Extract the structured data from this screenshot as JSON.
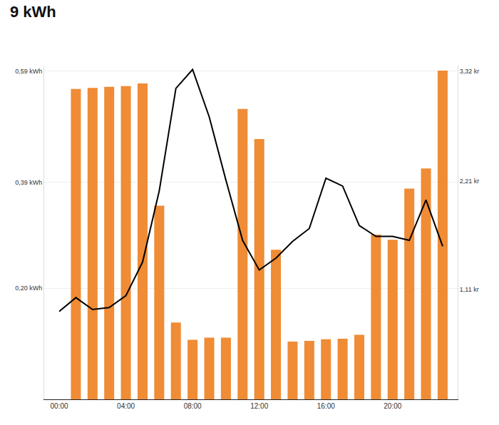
{
  "chart_data": {
    "type": "bar",
    "title": "9 kWh",
    "x": [
      0,
      1,
      2,
      3,
      4,
      5,
      6,
      7,
      8,
      9,
      10,
      11,
      12,
      13,
      14,
      15,
      16,
      17,
      18,
      19,
      20,
      21,
      22,
      23
    ],
    "series": [
      {
        "type": "bar",
        "color": "#ef8c35",
        "values": [
          null,
          0.558,
          0.56,
          0.562,
          0.563,
          0.568,
          0.348,
          0.138,
          0.107,
          0.111,
          0.111,
          0.522,
          0.468,
          0.269,
          0.104,
          0.105,
          0.108,
          0.109,
          0.116,
          0.296,
          0.287,
          0.379,
          0.415,
          0.591
        ]
      },
      {
        "type": "line",
        "color": "#000000",
        "axis": "y2",
        "values": [
          0.89,
          1.03,
          0.91,
          0.93,
          1.05,
          1.39,
          2.11,
          3.15,
          3.34,
          2.86,
          2.22,
          1.61,
          1.31,
          1.43,
          1.6,
          1.73,
          2.24,
          2.16,
          1.76,
          1.65,
          1.65,
          1.61,
          2.02,
          1.55
        ]
      }
    ],
    "xlim": [
      -0.9,
      23.9
    ],
    "xticks": [
      {
        "value": 0,
        "label": "00:00"
      },
      {
        "value": 4,
        "label": "04:00"
      },
      {
        "value": 8,
        "label": "08:00"
      },
      {
        "value": 12,
        "label": "12:00"
      },
      {
        "value": 16,
        "label": "16:00"
      },
      {
        "value": 20,
        "label": "20:00"
      }
    ],
    "ylim": [
      0,
      0.6
    ],
    "yticks": [
      {
        "value": 0.2,
        "label": "0,20 kWh"
      },
      {
        "value": 0.39,
        "label": "0,39 kWh"
      },
      {
        "value": 0.59,
        "label": "0,59 kWh"
      }
    ],
    "y2lim": [
      0,
      3.38
    ],
    "y2ticks": [
      {
        "value": 1.11,
        "label": "1,11 kr"
      },
      {
        "value": 2.21,
        "label": "2,21 kr"
      },
      {
        "value": 3.32,
        "label": "3,32 kr"
      }
    ],
    "grid": true
  }
}
